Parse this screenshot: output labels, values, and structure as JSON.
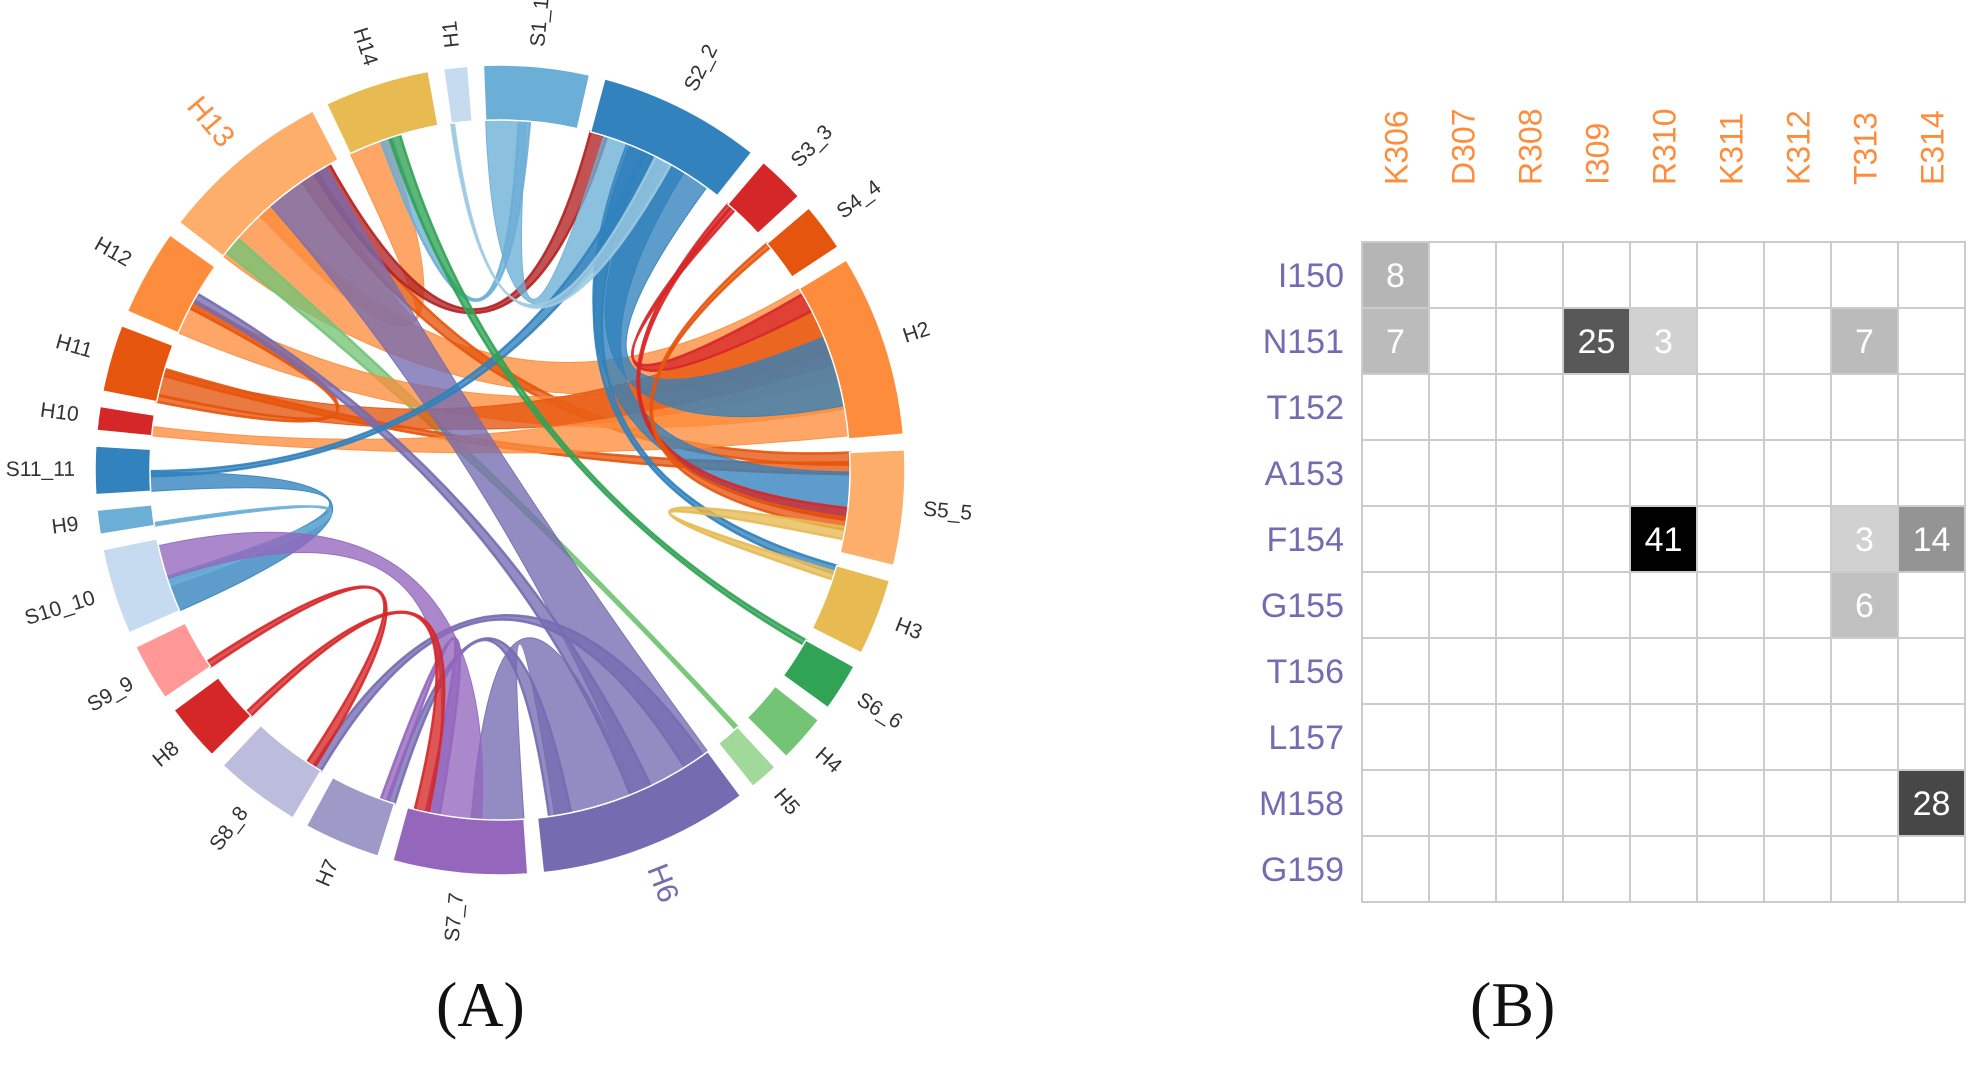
{
  "panel_a": {
    "label": "(A)",
    "segments": [
      {
        "name": "H1",
        "color": "#c6dbef",
        "big": false
      },
      {
        "name": "S1_1",
        "color": "#6baed6",
        "big": false
      },
      {
        "name": "S2_2",
        "color": "#3182bd",
        "big": false
      },
      {
        "name": "S3_3",
        "color": "#d62728",
        "big": false
      },
      {
        "name": "S4_4",
        "color": "#e6550d",
        "big": false
      },
      {
        "name": "H2",
        "color": "#fd8d3c",
        "big": false
      },
      {
        "name": "S5_5",
        "color": "#fdae6b",
        "big": false
      },
      {
        "name": "H3",
        "color": "#e7ba52",
        "big": false
      },
      {
        "name": "S6_6",
        "color": "#31a354",
        "big": false
      },
      {
        "name": "H4",
        "color": "#74c476",
        "big": false
      },
      {
        "name": "H5",
        "color": "#a1d99b",
        "big": false
      },
      {
        "name": "H6",
        "color": "#756bb1",
        "big": true
      },
      {
        "name": "S7_7",
        "color": "#9467bd",
        "big": false
      },
      {
        "name": "H7",
        "color": "#9e9ac8",
        "big": false
      },
      {
        "name": "S8_8",
        "color": "#bcbddc",
        "big": false
      },
      {
        "name": "H8",
        "color": "#d62728",
        "big": false
      },
      {
        "name": "S9_9",
        "color": "#ff9896",
        "big": false
      },
      {
        "name": "S10_10",
        "color": "#c6dbef",
        "big": false
      },
      {
        "name": "H9",
        "color": "#6baed6",
        "big": false
      },
      {
        "name": "S11_11",
        "color": "#3182bd",
        "big": false
      },
      {
        "name": "H10",
        "color": "#d62728",
        "big": false
      },
      {
        "name": "H11",
        "color": "#e6550d",
        "big": false
      },
      {
        "name": "H12",
        "color": "#fd8d3c",
        "big": false
      },
      {
        "name": "H13",
        "color": "#fdae6b",
        "big": true
      },
      {
        "name": "H14",
        "color": "#e7ba52",
        "big": false
      }
    ],
    "chords": [
      {
        "from": "H13",
        "to": "H2",
        "color": "#fd8d3c",
        "wide": true
      },
      {
        "from": "H13",
        "to": "H14",
        "color": "#fd8d3c",
        "wide": true
      },
      {
        "from": "H13",
        "to": "S5_5",
        "color": "#e6550d",
        "wide": false
      },
      {
        "from": "H13",
        "to": "S2_2",
        "color": "#b22222",
        "wide": false
      },
      {
        "from": "H13",
        "to": "H5",
        "color": "#74c476",
        "wide": false
      },
      {
        "from": "H12",
        "to": "H2",
        "color": "#fd8d3c",
        "wide": true
      },
      {
        "from": "H12",
        "to": "H11",
        "color": "#e6550d",
        "wide": false
      },
      {
        "from": "H11",
        "to": "H2",
        "color": "#e6550d",
        "wide": true
      },
      {
        "from": "H11",
        "to": "S5_5",
        "color": "#e6550d",
        "wide": false
      },
      {
        "from": "H10",
        "to": "H2",
        "color": "#fd8d3c",
        "wide": true
      },
      {
        "from": "S11_11",
        "to": "S10_10",
        "color": "#3182bd",
        "wide": true
      },
      {
        "from": "H9",
        "to": "S10_10",
        "color": "#6baed6",
        "wide": false
      },
      {
        "from": "H6",
        "to": "H13",
        "color": "#756bb1",
        "wide": true
      },
      {
        "from": "H6",
        "to": "H12",
        "color": "#756bb1",
        "wide": false
      },
      {
        "from": "H6",
        "to": "S7_7",
        "color": "#756bb1",
        "wide": true
      },
      {
        "from": "H6",
        "to": "H7",
        "color": "#756bb1",
        "wide": false
      },
      {
        "from": "H6",
        "to": "S8_8",
        "color": "#756bb1",
        "wide": false
      },
      {
        "from": "S7_7",
        "to": "S10_10",
        "color": "#9467bd",
        "wide": true
      },
      {
        "from": "S7_7",
        "to": "H7",
        "color": "#9467bd",
        "wide": false
      },
      {
        "from": "S1_1",
        "to": "S2_2",
        "color": "#6baed6",
        "wide": true
      },
      {
        "from": "S1_1",
        "to": "H14",
        "color": "#6baed6",
        "wide": false
      },
      {
        "from": "S2_2",
        "to": "H2",
        "color": "#3182bd",
        "wide": true
      },
      {
        "from": "S2_2",
        "to": "S5_5",
        "color": "#3182bd",
        "wide": true
      },
      {
        "from": "S2_2",
        "to": "H3",
        "color": "#3182bd",
        "wide": false
      },
      {
        "from": "S2_2",
        "to": "S11_11",
        "color": "#3182bd",
        "wide": false
      },
      {
        "from": "S3_3",
        "to": "S5_5",
        "color": "#d62728",
        "wide": false
      },
      {
        "from": "S3_3",
        "to": "H2",
        "color": "#d62728",
        "wide": false
      },
      {
        "from": "S4_4",
        "to": "S5_5",
        "color": "#e6550d",
        "wide": false
      },
      {
        "from": "H3",
        "to": "S5_5",
        "color": "#e7ba52",
        "wide": false
      },
      {
        "from": "H8",
        "to": "S7_7",
        "color": "#d62728",
        "wide": false
      },
      {
        "from": "S9_9",
        "to": "S8_8",
        "color": "#d62728",
        "wide": false
      },
      {
        "from": "H14",
        "to": "S6_6",
        "color": "#31a354",
        "wide": false
      },
      {
        "from": "H1",
        "to": "S2_2",
        "color": "#9ecae1",
        "wide": false
      }
    ]
  },
  "panel_b": {
    "label": "(B)",
    "chart_data": {
      "type": "heatmap",
      "columns": [
        "K306",
        "D307",
        "R308",
        "I309",
        "R310",
        "K311",
        "K312",
        "T313",
        "E314"
      ],
      "rows": [
        "I150",
        "N151",
        "T152",
        "A153",
        "F154",
        "G155",
        "T156",
        "L157",
        "M158",
        "G159"
      ],
      "values": [
        [
          8,
          null,
          null,
          null,
          null,
          null,
          null,
          null,
          null
        ],
        [
          7,
          null,
          null,
          25,
          3,
          null,
          null,
          7,
          null
        ],
        [
          null,
          null,
          null,
          null,
          null,
          null,
          null,
          null,
          null
        ],
        [
          null,
          null,
          null,
          null,
          null,
          null,
          null,
          null,
          null
        ],
        [
          null,
          null,
          null,
          null,
          41,
          null,
          null,
          3,
          14
        ],
        [
          null,
          null,
          null,
          null,
          null,
          null,
          null,
          6,
          null
        ],
        [
          null,
          null,
          null,
          null,
          null,
          null,
          null,
          null,
          null
        ],
        [
          null,
          null,
          null,
          null,
          null,
          null,
          null,
          null,
          null
        ],
        [
          null,
          null,
          null,
          null,
          null,
          null,
          null,
          null,
          28
        ],
        [
          null,
          null,
          null,
          null,
          null,
          null,
          null,
          null,
          null
        ]
      ],
      "column_label_color": "#fd8d3c",
      "row_label_color": "#756bb1"
    }
  }
}
